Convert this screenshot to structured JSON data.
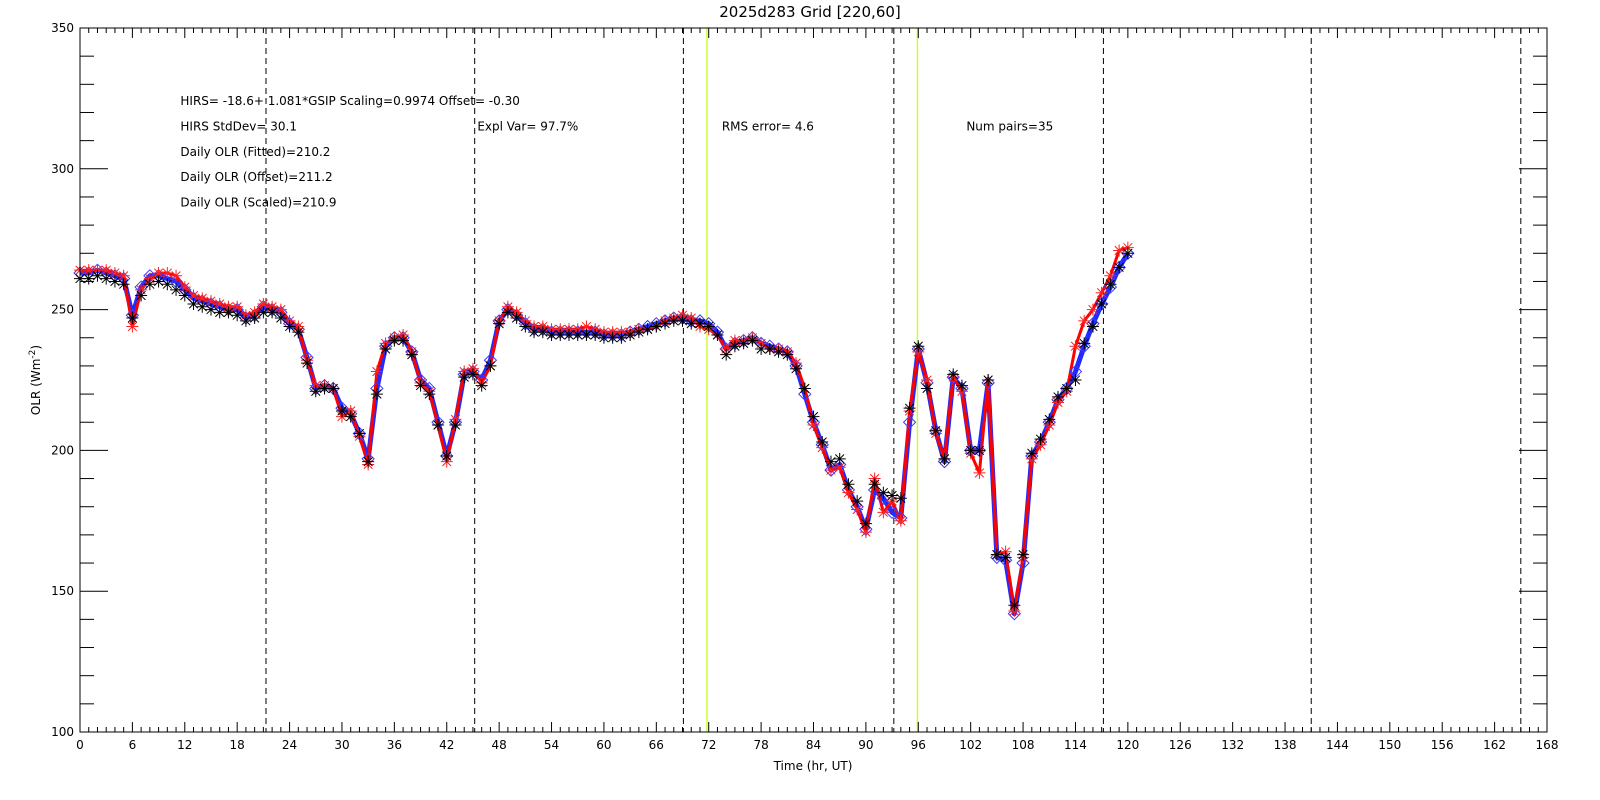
{
  "chart_data": {
    "type": "line",
    "title": "2025d283 Grid [220,60]",
    "xlabel": "Time (hr, UT)",
    "ylabel": "OLR (Wm",
    "ylabel_sup": "-2",
    "ylabel_suffix": ")",
    "xlim": [
      0,
      168
    ],
    "ylim": [
      100,
      350
    ],
    "xticks": [
      0,
      6,
      12,
      18,
      24,
      30,
      36,
      42,
      48,
      54,
      60,
      66,
      72,
      78,
      84,
      90,
      96,
      102,
      108,
      114,
      120,
      126,
      132,
      138,
      144,
      150,
      156,
      162,
      168
    ],
    "yticks": [
      100,
      150,
      200,
      250,
      300,
      350
    ],
    "grid": false,
    "vlines_dashed": [
      21.3,
      45.2,
      69.1,
      93.2,
      117.2,
      141.0,
      165.0
    ],
    "vlines_yellow": [
      71.8,
      95.9
    ],
    "annotations": [
      {
        "text": "HIRS=  -18.6+  1.081*GSIP  Scaling=0.9974  Offset= -0.30",
        "x": 11.5,
        "y": 324
      },
      {
        "text": "HIRS StdDev= 30.1",
        "x": 11.5,
        "y": 315
      },
      {
        "text": "Expl Var= 97.7%",
        "x": 45.5,
        "y": 315
      },
      {
        "text": "RMS error=  4.6",
        "x": 73.5,
        "y": 315
      },
      {
        "text": "Num pairs=35",
        "x": 101.5,
        "y": 315
      },
      {
        "text": "Daily OLR (Fitted)=210.2",
        "x": 11.5,
        "y": 306
      },
      {
        "text": "Daily OLR (Offset)=211.2",
        "x": 11.5,
        "y": 297
      },
      {
        "text": "Daily OLR (Scaled)=210.9",
        "x": 11.5,
        "y": 288
      }
    ],
    "series": [
      {
        "line_color": "#1f2bff",
        "line_width": 5,
        "marker": "diamond",
        "marker_color": "#3a3aff",
        "x": [
          0,
          1,
          2,
          3,
          4,
          5,
          6,
          7,
          8,
          9,
          10,
          11,
          12,
          13,
          14,
          15,
          16,
          17,
          18,
          19,
          20,
          21,
          22,
          23,
          24,
          25,
          26,
          27,
          28,
          29,
          30,
          31,
          32,
          33,
          34,
          35,
          36,
          37,
          38,
          39,
          40,
          41,
          42,
          43,
          44,
          45,
          46,
          47,
          48,
          49,
          50,
          51,
          52,
          53,
          54,
          55,
          56,
          57,
          58,
          59,
          60,
          61,
          62,
          63,
          64,
          65,
          66,
          67,
          68,
          69,
          70,
          71,
          72,
          73,
          74,
          75,
          76,
          77,
          78,
          79,
          80,
          81,
          82,
          83,
          84,
          85,
          86,
          87,
          88,
          89,
          90,
          91,
          92,
          93,
          94,
          95,
          96,
          97,
          98,
          99,
          100,
          101,
          102,
          103,
          104,
          105,
          106,
          107,
          108,
          109,
          110,
          111,
          112,
          113,
          114,
          115,
          116,
          117,
          118,
          119,
          120
        ],
        "y": [
          263,
          263,
          264,
          263,
          262,
          261,
          248,
          258,
          262,
          262,
          261,
          260,
          257,
          254,
          253,
          252,
          251,
          250,
          250,
          247,
          248,
          251,
          250,
          249,
          245,
          243,
          233,
          222,
          223,
          222,
          215,
          213,
          206,
          197,
          222,
          237,
          240,
          240,
          235,
          225,
          222,
          210,
          198,
          210,
          227,
          228,
          225,
          232,
          246,
          250,
          248,
          245,
          243,
          243,
          242,
          242,
          242,
          242,
          242,
          242,
          241,
          241,
          241,
          242,
          243,
          244,
          245,
          246,
          247,
          247,
          246,
          246,
          245,
          242,
          236,
          238,
          239,
          240,
          238,
          237,
          236,
          235,
          230,
          220,
          210,
          202,
          193,
          195,
          186,
          180,
          172,
          186,
          183,
          178,
          176,
          210,
          236,
          224,
          207,
          196,
          226,
          222,
          200,
          200,
          224,
          162,
          161,
          142,
          160,
          198,
          203,
          210,
          218,
          222,
          228,
          237,
          245,
          252,
          258,
          265,
          270
        ]
      },
      {
        "line_color": "#ff0000",
        "line_width": 3,
        "marker": "asterisk",
        "marker_color": "#ff2020",
        "x": [
          0,
          1,
          2,
          3,
          4,
          5,
          6,
          7,
          8,
          9,
          10,
          11,
          12,
          13,
          14,
          15,
          16,
          17,
          18,
          19,
          20,
          21,
          22,
          23,
          24,
          25,
          26,
          27,
          28,
          29,
          30,
          31,
          32,
          33,
          34,
          35,
          36,
          37,
          38,
          39,
          40,
          41,
          42,
          43,
          44,
          45,
          46,
          47,
          48,
          49,
          50,
          51,
          52,
          53,
          54,
          55,
          56,
          57,
          58,
          59,
          60,
          61,
          62,
          63,
          64,
          65,
          66,
          67,
          68,
          69,
          70,
          71,
          72,
          73,
          74,
          75,
          76,
          77,
          78,
          79,
          80,
          81,
          82,
          83,
          84,
          85,
          86,
          87,
          88,
          89,
          90,
          91,
          92,
          93,
          94,
          95,
          96,
          97,
          98,
          99,
          100,
          101,
          102,
          103,
          104,
          105,
          106,
          107,
          108,
          109,
          110,
          111,
          112,
          113,
          114,
          115,
          116,
          117,
          118,
          119,
          120
        ],
        "y": [
          264,
          264,
          264,
          264,
          263,
          262,
          244,
          257,
          261,
          263,
          263,
          262,
          258,
          255,
          254,
          253,
          252,
          251,
          251,
          248,
          249,
          252,
          251,
          250,
          246,
          244,
          232,
          223,
          223,
          222,
          212,
          214,
          205,
          195,
          228,
          238,
          240,
          241,
          235,
          224,
          221,
          209,
          196,
          211,
          228,
          229,
          224,
          230,
          246,
          251,
          249,
          246,
          244,
          244,
          243,
          243,
          243,
          243,
          244,
          243,
          242,
          242,
          242,
          242,
          243,
          243,
          244,
          246,
          247,
          248,
          247,
          244,
          243,
          241,
          236,
          239,
          239,
          240,
          238,
          236,
          236,
          235,
          231,
          222,
          209,
          201,
          193,
          194,
          185,
          179,
          171,
          190,
          178,
          182,
          175,
          214,
          235,
          225,
          206,
          197,
          226,
          221,
          199,
          192,
          225,
          163,
          164,
          143,
          162,
          197,
          202,
          209,
          217,
          221,
          237,
          246,
          250,
          256,
          262,
          271,
          272
        ]
      },
      {
        "line_color": "#000000",
        "line_width": 0,
        "marker": "asterisk",
        "marker_color": "#000000",
        "x": [
          0,
          1,
          2,
          3,
          4,
          5,
          6,
          7,
          8,
          9,
          10,
          11,
          12,
          13,
          14,
          15,
          16,
          17,
          18,
          19,
          20,
          21,
          22,
          23,
          24,
          25,
          26,
          27,
          28,
          29,
          30,
          31,
          32,
          33,
          34,
          35,
          36,
          37,
          38,
          39,
          40,
          41,
          42,
          43,
          44,
          45,
          46,
          47,
          48,
          49,
          50,
          51,
          52,
          53,
          54,
          55,
          56,
          57,
          58,
          59,
          60,
          61,
          62,
          63,
          64,
          65,
          66,
          67,
          68,
          69,
          70,
          71,
          72,
          73,
          74,
          75,
          76,
          77,
          78,
          79,
          80,
          81,
          82,
          83,
          84,
          85,
          86,
          87,
          88,
          89,
          90,
          91,
          92,
          93,
          94,
          95,
          96,
          97,
          98,
          99,
          100,
          101,
          102,
          103,
          104,
          105,
          106,
          107,
          108,
          109,
          110,
          111,
          112,
          113,
          114,
          115,
          116,
          117,
          118,
          119,
          120
        ],
        "y": [
          261,
          261,
          262,
          261,
          260,
          259,
          247,
          255,
          259,
          260,
          259,
          257,
          255,
          252,
          251,
          250,
          249,
          249,
          248,
          246,
          247,
          249,
          249,
          247,
          244,
          242,
          231,
          221,
          222,
          222,
          214,
          212,
          206,
          196,
          220,
          236,
          239,
          239,
          234,
          223,
          220,
          209,
          198,
          209,
          226,
          227,
          223,
          230,
          245,
          249,
          247,
          244,
          242,
          242,
          241,
          241,
          241,
          241,
          241,
          241,
          240,
          240,
          240,
          241,
          242,
          243,
          244,
          245,
          246,
          246,
          245,
          245,
          244,
          241,
          234,
          237,
          238,
          239,
          236,
          236,
          235,
          234,
          229,
          222,
          212,
          203,
          196,
          197,
          188,
          182,
          174,
          188,
          185,
          184,
          183,
          215,
          237,
          222,
          207,
          197,
          227,
          223,
          200,
          200,
          225,
          163,
          162,
          145,
          163,
          199,
          204,
          211,
          219,
          222,
          225,
          238,
          244,
          252,
          259,
          265,
          270
        ]
      }
    ]
  }
}
